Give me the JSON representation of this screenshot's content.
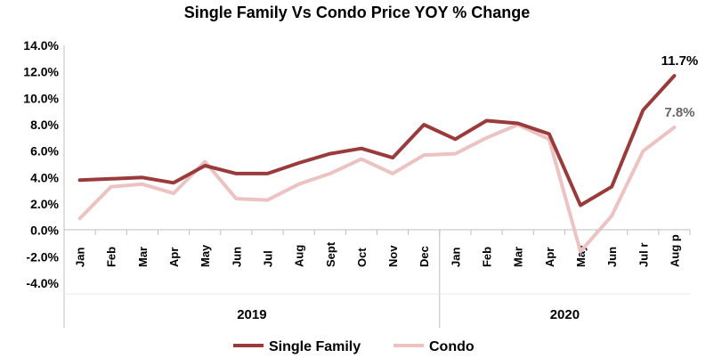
{
  "chart_data": {
    "type": "line",
    "title": "Single Family Vs Condo Price YOY % Change",
    "xlabel": "",
    "ylabel": "",
    "ylim": [
      -4,
      14
    ],
    "yticks": [
      "14.0%",
      "12.0%",
      "10.0%",
      "8.0%",
      "6.0%",
      "4.0%",
      "2.0%",
      "0.0%",
      "-2.0%",
      "-4.0%"
    ],
    "ytick_values": [
      14,
      12,
      10,
      8,
      6,
      4,
      2,
      0,
      -2,
      -4
    ],
    "categories": [
      "Jan",
      "Feb",
      "Mar",
      "Apr",
      "May",
      "Jun",
      "Jul",
      "Aug",
      "Sept",
      "Oct",
      "Nov",
      "Dec",
      "Jan",
      "Feb",
      "Mar",
      "Apr",
      "May",
      "Jun",
      "Jul r",
      "Aug p"
    ],
    "groups": [
      {
        "label": "2019",
        "count": 12
      },
      {
        "label": "2020",
        "count": 8
      }
    ],
    "series": [
      {
        "name": "Single Family",
        "color": "#9b3a3a",
        "values": [
          3.8,
          3.9,
          4.0,
          3.6,
          4.9,
          4.3,
          4.3,
          5.1,
          5.8,
          6.2,
          5.5,
          8.0,
          6.9,
          8.3,
          8.1,
          7.3,
          1.9,
          3.3,
          9.1,
          11.7
        ]
      },
      {
        "name": "Condo",
        "color": "#ecc2c2",
        "values": [
          0.9,
          3.3,
          3.5,
          2.8,
          5.2,
          2.4,
          2.3,
          3.5,
          4.3,
          5.4,
          4.3,
          5.7,
          5.8,
          7.0,
          8.0,
          6.9,
          -1.6,
          1.1,
          6.0,
          7.8
        ]
      }
    ],
    "data_labels": [
      {
        "series": "Single Family",
        "text": "11.7%",
        "color": "#000000"
      },
      {
        "series": "Condo",
        "text": "7.8%",
        "color": "#666666"
      }
    ],
    "grid": false,
    "legend": "bottom"
  }
}
